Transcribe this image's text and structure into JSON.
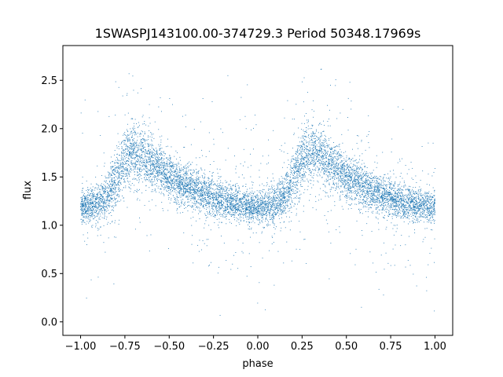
{
  "chart_data": {
    "type": "scatter",
    "title": "1SWASPJ143100.00-374729.3 Period 50348.17969s",
    "xlabel": "phase",
    "ylabel": "flux",
    "xlim": [
      -1.1,
      1.1
    ],
    "ylim": [
      -0.14,
      2.86
    ],
    "xticks": [
      -1.0,
      -0.75,
      -0.5,
      -0.25,
      0.0,
      0.25,
      0.5,
      0.75,
      1.0
    ],
    "xtick_labels": [
      "−1.00",
      "−0.75",
      "−0.50",
      "−0.25",
      "0.00",
      "0.25",
      "0.50",
      "0.75",
      "1.00"
    ],
    "yticks": [
      0.0,
      0.5,
      1.0,
      1.5,
      2.0,
      2.5
    ],
    "ytick_labels": [
      "0.0",
      "0.5",
      "1.0",
      "1.5",
      "2.0",
      "2.5"
    ],
    "grid": false,
    "marker_color": "#1f77b4",
    "phase_range": [
      -1.0,
      1.0
    ],
    "light_curve": {
      "phase": [
        0.0,
        0.05,
        0.1,
        0.15,
        0.2,
        0.25,
        0.3,
        0.35,
        0.4,
        0.45,
        0.5,
        0.55,
        0.6,
        0.65,
        0.7,
        0.75,
        0.8,
        0.85,
        0.9,
        0.95,
        1.0
      ],
      "median_flux": [
        1.18,
        1.2,
        1.22,
        1.3,
        1.48,
        1.7,
        1.76,
        1.72,
        1.65,
        1.58,
        1.5,
        1.44,
        1.4,
        1.36,
        1.32,
        1.28,
        1.25,
        1.23,
        1.21,
        1.19,
        1.18
      ],
      "scatter_sigma": [
        0.08,
        0.09,
        0.1,
        0.12,
        0.14,
        0.15,
        0.15,
        0.14,
        0.13,
        0.12,
        0.12,
        0.11,
        0.11,
        0.1,
        0.1,
        0.1,
        0.09,
        0.09,
        0.09,
        0.08,
        0.08
      ]
    }
  }
}
